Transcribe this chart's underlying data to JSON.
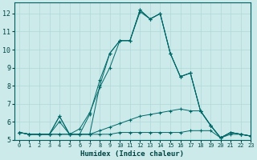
{
  "xlabel": "Humidex (Indice chaleur)",
  "xlim": [
    -0.5,
    23
  ],
  "ylim": [
    5,
    12.6
  ],
  "yticks": [
    5,
    6,
    7,
    8,
    9,
    10,
    11,
    12
  ],
  "xticks": [
    0,
    1,
    2,
    3,
    4,
    5,
    6,
    7,
    8,
    9,
    10,
    11,
    12,
    13,
    14,
    15,
    16,
    17,
    18,
    19,
    20,
    21,
    22,
    23
  ],
  "bg_color": "#cceaea",
  "line_color": "#006868",
  "lines": [
    {
      "x": [
        0,
        1,
        2,
        3,
        4,
        5,
        6,
        7,
        8,
        9,
        10,
        11,
        12,
        13,
        14,
        15,
        16,
        17,
        18,
        19,
        20,
        21,
        22,
        23
      ],
      "y": [
        5.4,
        5.3,
        5.3,
        5.3,
        6.3,
        5.3,
        5.3,
        6.4,
        8.3,
        9.8,
        10.5,
        10.5,
        12.2,
        11.7,
        12.0,
        9.8,
        8.5,
        8.7,
        6.6,
        5.8,
        5.1,
        5.4,
        5.3,
        5.2
      ]
    },
    {
      "x": [
        0,
        1,
        2,
        3,
        4,
        5,
        6,
        7,
        8,
        9,
        10,
        11,
        12,
        13,
        14,
        15,
        16,
        17,
        18,
        19,
        20,
        21,
        22,
        23
      ],
      "y": [
        5.4,
        5.3,
        5.3,
        5.3,
        6.3,
        5.3,
        5.3,
        5.3,
        8.0,
        9.8,
        10.5,
        10.5,
        12.2,
        11.7,
        12.0,
        9.8,
        8.5,
        8.7,
        6.6,
        5.8,
        5.1,
        5.4,
        5.3,
        5.2
      ]
    },
    {
      "x": [
        0,
        1,
        2,
        3,
        4,
        5,
        6,
        7,
        8,
        9,
        10,
        11,
        12,
        13,
        14,
        15,
        16,
        17,
        18,
        19,
        20,
        21,
        22,
        23
      ],
      "y": [
        5.4,
        5.3,
        5.3,
        5.3,
        6.0,
        5.3,
        5.6,
        6.5,
        7.9,
        9.0,
        10.5,
        10.5,
        12.1,
        11.7,
        12.0,
        9.8,
        8.5,
        8.7,
        6.6,
        5.8,
        5.1,
        5.4,
        5.3,
        5.2
      ]
    },
    {
      "x": [
        0,
        1,
        2,
        3,
        4,
        5,
        6,
        7,
        8,
        9,
        10,
        11,
        12,
        13,
        14,
        15,
        16,
        17,
        18,
        19,
        20,
        21,
        22,
        23
      ],
      "y": [
        5.4,
        5.3,
        5.3,
        5.3,
        5.3,
        5.3,
        5.3,
        5.3,
        5.5,
        5.7,
        5.9,
        6.1,
        6.3,
        6.4,
        6.5,
        6.6,
        6.7,
        6.6,
        6.6,
        5.8,
        5.1,
        5.4,
        5.3,
        5.2
      ]
    },
    {
      "x": [
        0,
        1,
        2,
        3,
        4,
        5,
        6,
        7,
        8,
        9,
        10,
        11,
        12,
        13,
        14,
        15,
        16,
        17,
        18,
        19,
        20,
        21,
        22,
        23
      ],
      "y": [
        5.4,
        5.3,
        5.3,
        5.3,
        5.3,
        5.3,
        5.3,
        5.3,
        5.3,
        5.3,
        5.4,
        5.4,
        5.4,
        5.4,
        5.4,
        5.4,
        5.4,
        5.5,
        5.5,
        5.5,
        5.1,
        5.3,
        5.3,
        5.2
      ]
    }
  ]
}
